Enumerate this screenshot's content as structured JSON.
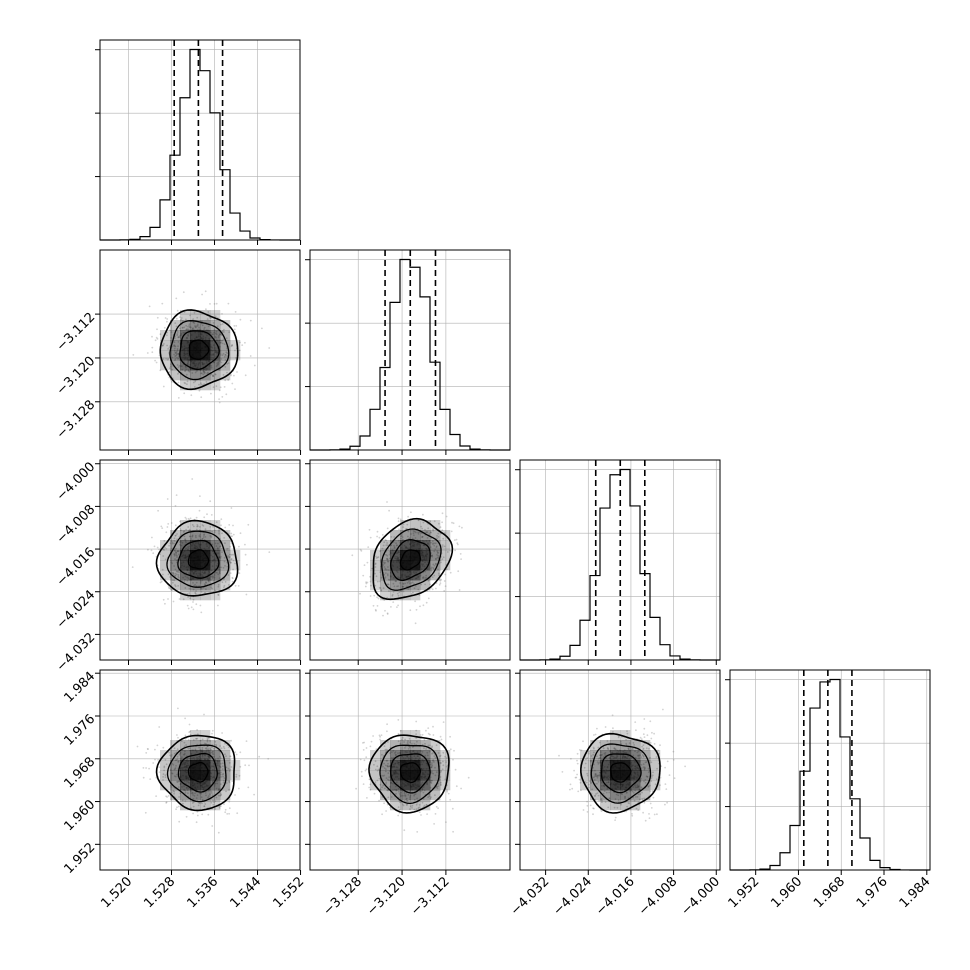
{
  "chart_data": {
    "type": "corner",
    "style": {
      "grid": true,
      "colors": {
        "line": "#000000",
        "grid": "#b0b0b0",
        "scatter": "#808080",
        "density": "#000000"
      }
    },
    "parameters": [
      {
        "id": "p0",
        "mean": 1.533,
        "sd": 0.0035,
        "range": [
          1.5147,
          1.5519
        ],
        "ticks": [
          "1.520",
          "1.528",
          "1.536",
          "1.544",
          "1.552"
        ],
        "quantiles": [
          1.5285,
          1.533,
          1.5375
        ]
      },
      {
        "id": "p1",
        "mean": -3.1185,
        "sd": 0.0036,
        "range": [
          -3.1368,
          -3.1003
        ],
        "ticks": [
          "−3.128",
          "−3.120",
          "−3.112"
        ],
        "quantiles": [
          -3.1231,
          -3.1185,
          -3.1139
        ]
      },
      {
        "id": "p2",
        "mean": -4.018,
        "sd": 0.0037,
        "range": [
          -4.0368,
          -3.9993
        ],
        "ticks": [
          "−4.032",
          "−4.024",
          "−4.016",
          "−4.008",
          "−4.000"
        ],
        "quantiles": [
          -4.0226,
          -4.018,
          -4.0134
        ]
      },
      {
        "id": "p3",
        "mean": 1.9655,
        "sd": 0.0036,
        "range": [
          1.9472,
          1.9846
        ],
        "ticks": [
          "1.952",
          "1.960",
          "1.968",
          "1.976",
          "1.984"
        ],
        "quantiles": [
          1.961,
          1.9655,
          1.97
        ]
      }
    ],
    "correlations": [
      {
        "x": "p0",
        "y": "p1",
        "r": 0.0
      },
      {
        "x": "p0",
        "y": "p2",
        "r": 0.0
      },
      {
        "x": "p1",
        "y": "p2",
        "r": 0.25
      },
      {
        "x": "p0",
        "y": "p3",
        "r": 0.0
      },
      {
        "x": "p1",
        "y": "p3",
        "r": 0.0
      },
      {
        "x": "p2",
        "y": "p3",
        "r": 0.0
      }
    ],
    "histogram_bins": 20,
    "contour_levels_sigma": [
      0.5,
      1.0,
      1.5,
      2.0
    ]
  }
}
